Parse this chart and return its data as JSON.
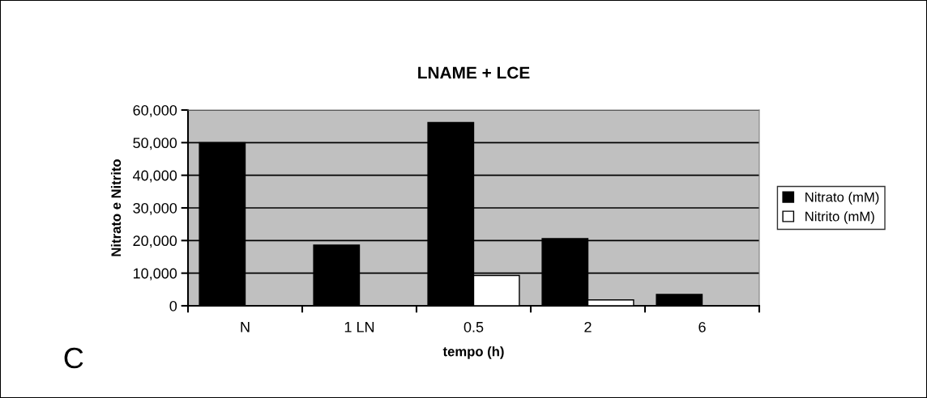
{
  "chart_data": {
    "type": "bar",
    "title": "LNAME + LCE",
    "xlabel": "tempo (h)",
    "ylabel": "Nitrato e Nitrito",
    "categories": [
      "N",
      "1 LN",
      "0.5",
      "2",
      "6"
    ],
    "series": [
      {
        "name": "Nitrato (mM)",
        "color": "#000000",
        "values": [
          50000,
          18600,
          56200,
          20600,
          3500
        ]
      },
      {
        "name": "Nitrito (mM)",
        "color": "#ffffff",
        "values": [
          0,
          0,
          9300,
          1800,
          0
        ]
      }
    ],
    "ylim": [
      0,
      60000
    ],
    "yticks": [
      {
        "value": 0,
        "label": "0"
      },
      {
        "value": 10000,
        "label": "10,000"
      },
      {
        "value": 20000,
        "label": "20,000"
      },
      {
        "value": 30000,
        "label": "30,000"
      },
      {
        "value": 40000,
        "label": "40,000"
      },
      {
        "value": 50000,
        "label": "50,000"
      },
      {
        "value": 60000,
        "label": "60,000"
      }
    ],
    "grid": "y",
    "legend": "right",
    "annotations": [
      "C"
    ]
  }
}
